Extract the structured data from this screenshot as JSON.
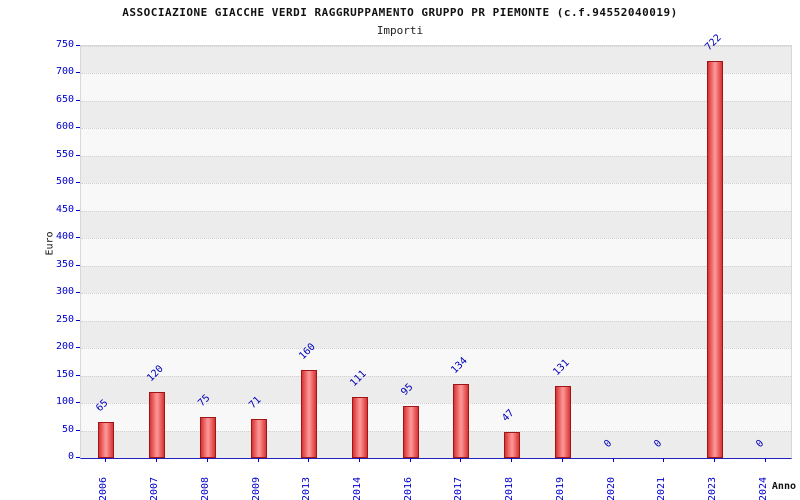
{
  "header": {
    "title": "ASSOCIAZIONE GIACCHE VERDI RAGGRUPPAMENTO GRUPPO PR PIEMONTE (c.f.94552040019)",
    "subtitle": "Importi"
  },
  "chart_data": {
    "type": "bar",
    "title": "ASSOCIAZIONE GIACCHE VERDI RAGGRUPPAMENTO GRUPPO PR PIEMONTE (c.f.94552040019)",
    "subtitle": "Importi",
    "categories": [
      "2006",
      "2007",
      "2008",
      "2009",
      "2013",
      "2014",
      "2016",
      "2017",
      "2018",
      "2019",
      "2020",
      "2021",
      "2023",
      "2024"
    ],
    "values": [
      65,
      120,
      75,
      71,
      160,
      111,
      95,
      134,
      47,
      131,
      0,
      0,
      722,
      0
    ],
    "xlabel": "Anno",
    "ylabel": "Euro",
    "ylim": [
      0,
      750
    ],
    "ytick_step": 50,
    "grid": true,
    "legend": "none",
    "colors": {
      "bar_edge": "#d83434",
      "bar_center": "#ff9a9a",
      "bar_border": "#a01515",
      "axis_text": "#0000cc",
      "value_label": "#0000bb",
      "band_even": "#ececec",
      "band_odd": "#f8f8f8"
    }
  }
}
